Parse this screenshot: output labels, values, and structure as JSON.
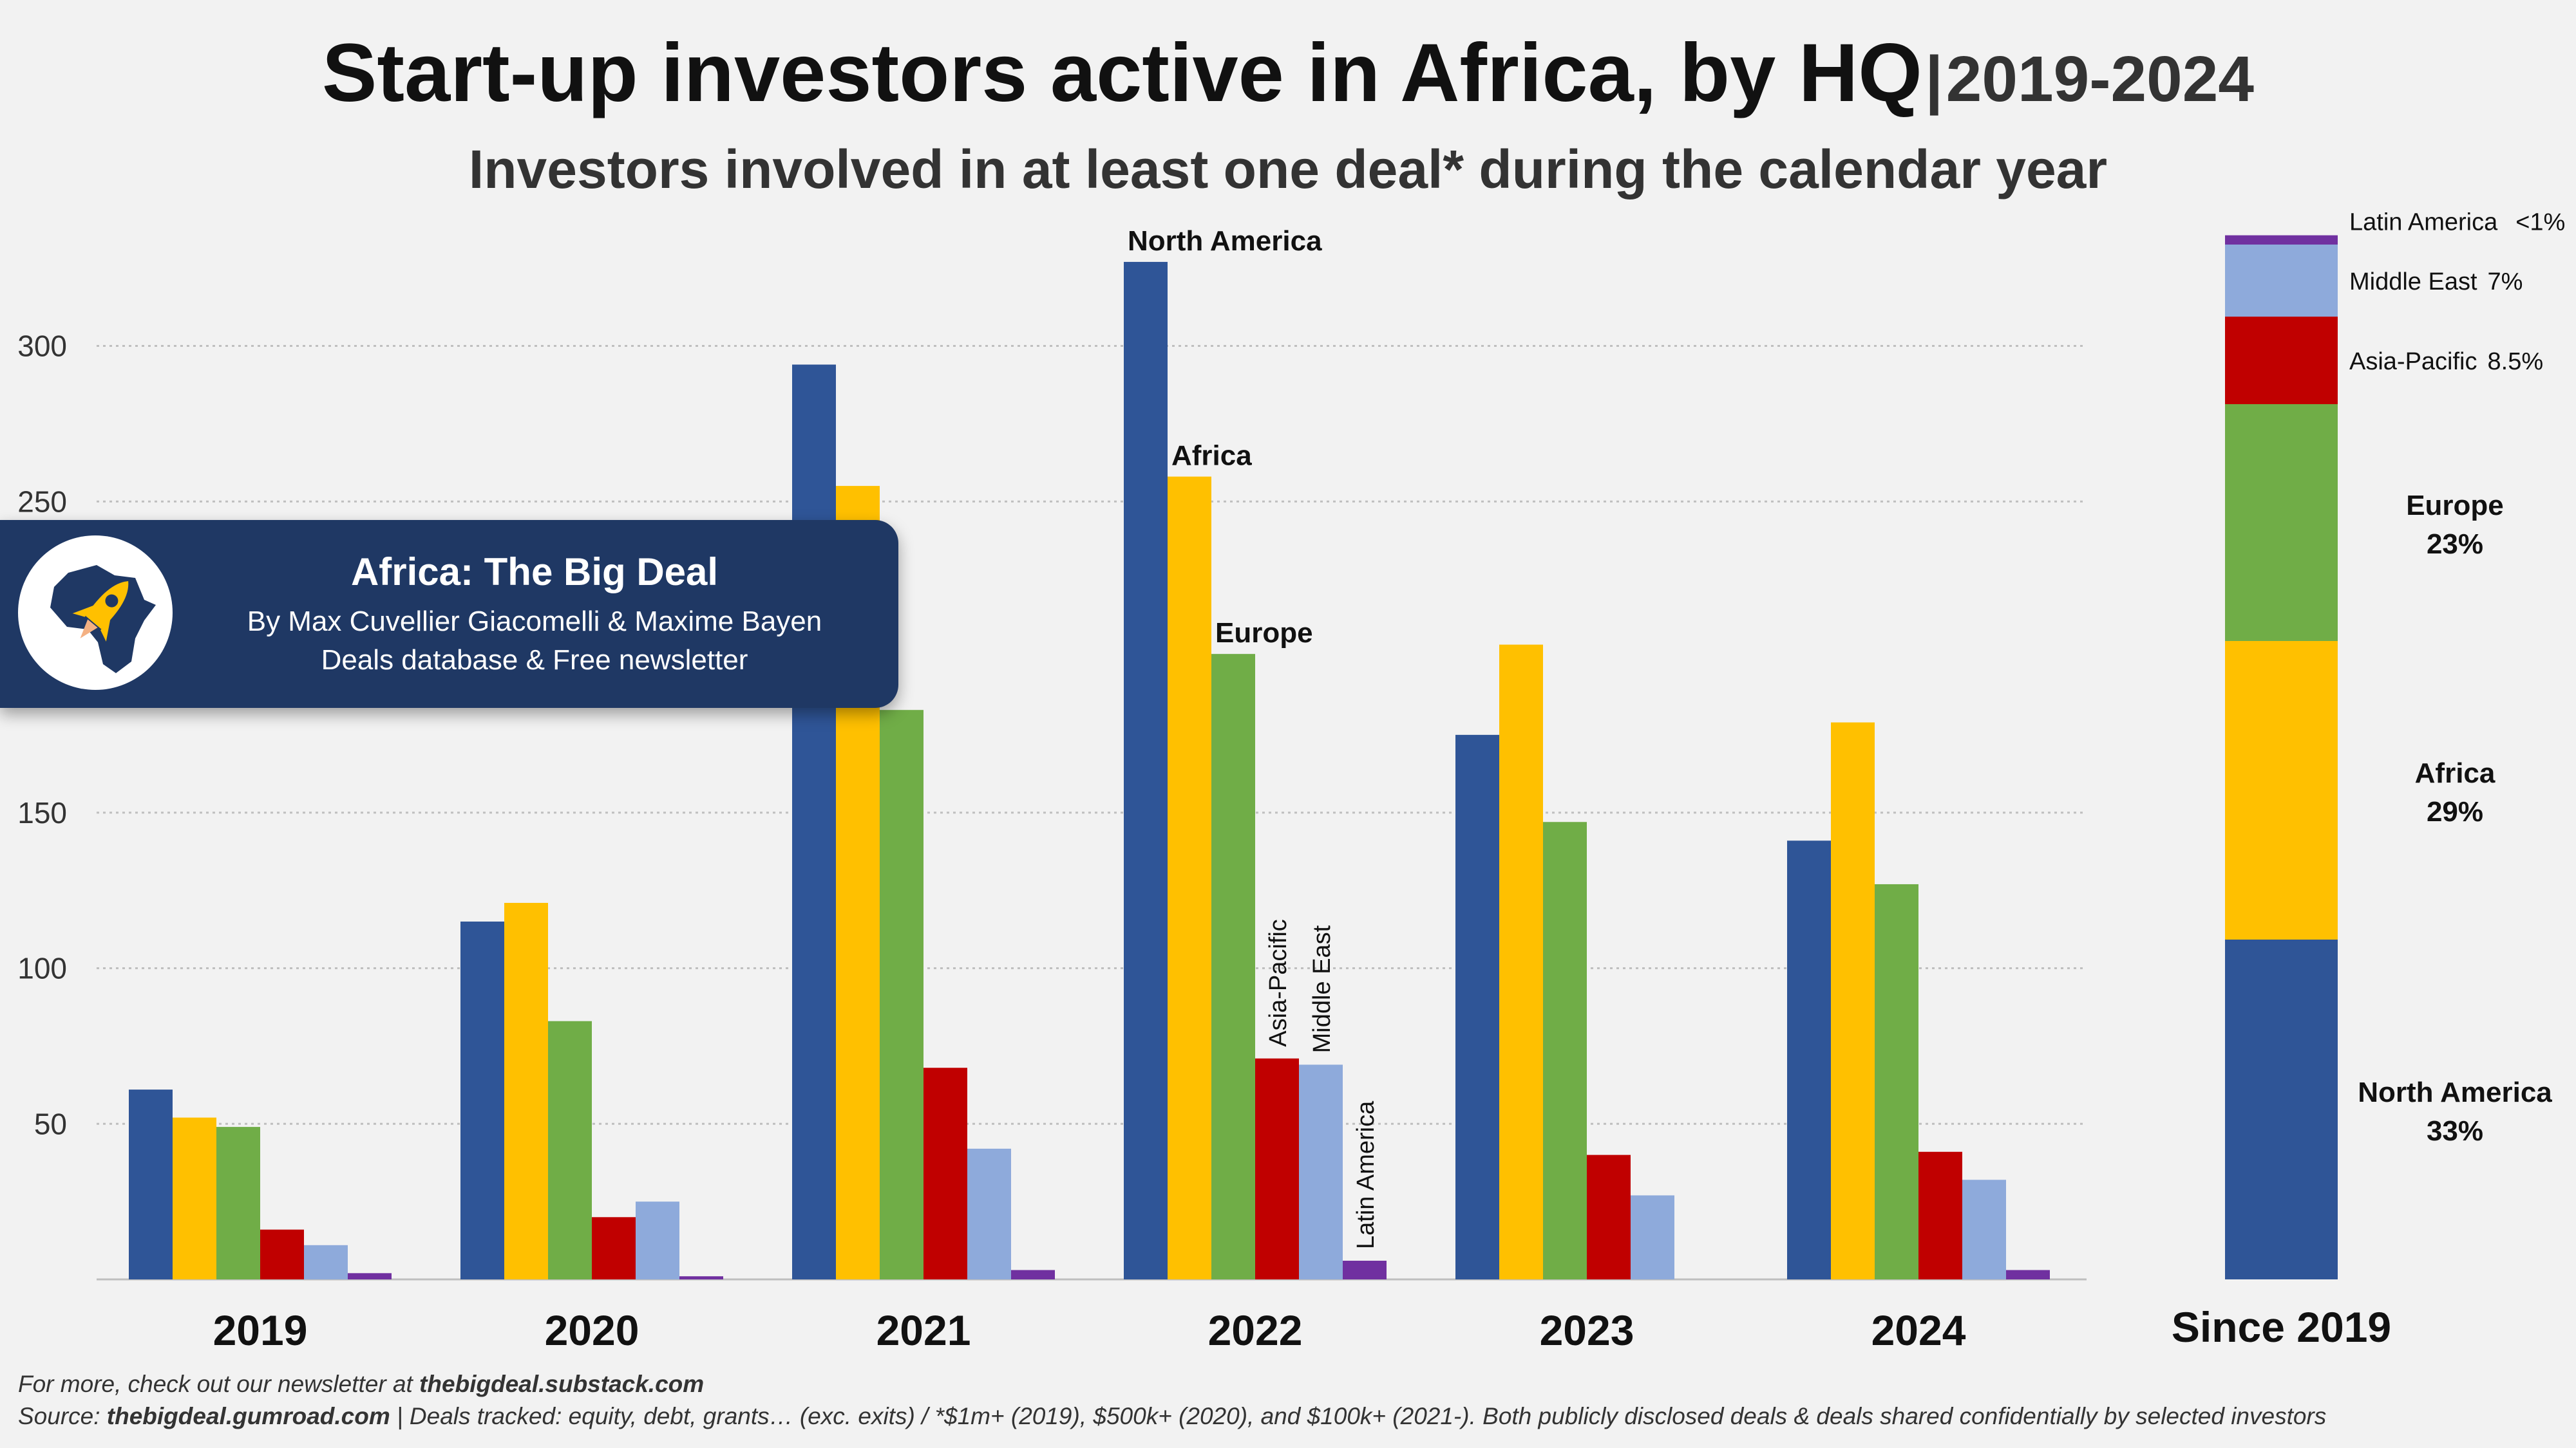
{
  "title": {
    "main": "Start-up investors active in Africa, by HQ",
    "separator": "|",
    "years": "2019-2024"
  },
  "subtitle": "Investors involved in at least one deal* during the calendar year",
  "banner": {
    "title": "Africa: The Big Deal",
    "line1": "By Max Cuvellier Giacomelli & Maxime Bayen",
    "line2": "Deals database & Free newsletter",
    "logo_icon": "africa-rocket-icon"
  },
  "footer": {
    "line1_prefix": "For more, check out our newsletter at ",
    "line1_link": "thebigdeal.substack.com",
    "line2_prefix": "Source: ",
    "line2_link": "thebigdeal.gumroad.com",
    "line2_rest": " | Deals tracked: equity, debt, grants… (exc. exits) / *$1m+ (2019), $500k+ (2020), and $100k+ (2021-). Both publicly disclosed deals & deals shared confidentially by selected investors"
  },
  "chart_data": [
    {
      "type": "bar",
      "categories": [
        "2019",
        "2020",
        "2021",
        "2022",
        "2023",
        "2024"
      ],
      "ylim": [
        0,
        330
      ],
      "yticks": [
        50,
        100,
        150,
        250,
        300
      ],
      "grid": true,
      "series": [
        {
          "name": "North America",
          "color": "#2f5597",
          "values": [
            61,
            115,
            294,
            327,
            175,
            141
          ]
        },
        {
          "name": "Africa",
          "color": "#ffc000",
          "values": [
            52,
            121,
            255,
            258,
            204,
            179
          ]
        },
        {
          "name": "Europe",
          "color": "#70ad47",
          "values": [
            49,
            83,
            183,
            201,
            147,
            127
          ]
        },
        {
          "name": "Asia-Pacific",
          "color": "#c00000",
          "values": [
            16,
            20,
            68,
            71,
            40,
            41
          ]
        },
        {
          "name": "Middle East",
          "color": "#8eaadb",
          "values": [
            11,
            25,
            42,
            69,
            27,
            32
          ]
        },
        {
          "name": "Latin America",
          "color": "#7030a0",
          "values": [
            2,
            1,
            3,
            6,
            0,
            3
          ]
        }
      ],
      "labeled_category": "2022"
    },
    {
      "type": "bar",
      "stacked": true,
      "category": "Since 2019",
      "segments": [
        {
          "name": "North America",
          "share": 33,
          "label": "33%",
          "color": "#2f5597"
        },
        {
          "name": "Africa",
          "share": 29,
          "label": "29%",
          "color": "#ffc000"
        },
        {
          "name": "Europe",
          "share": 23,
          "label": "23%",
          "color": "#70ad47"
        },
        {
          "name": "Asia-Pacific",
          "share": 8.5,
          "label": "8.5%",
          "color": "#c00000"
        },
        {
          "name": "Middle East",
          "share": 7,
          "label": "7%",
          "color": "#8eaadb"
        },
        {
          "name": "Latin America",
          "share": 0.9,
          "label": "<1%",
          "color": "#7030a0"
        }
      ]
    }
  ]
}
